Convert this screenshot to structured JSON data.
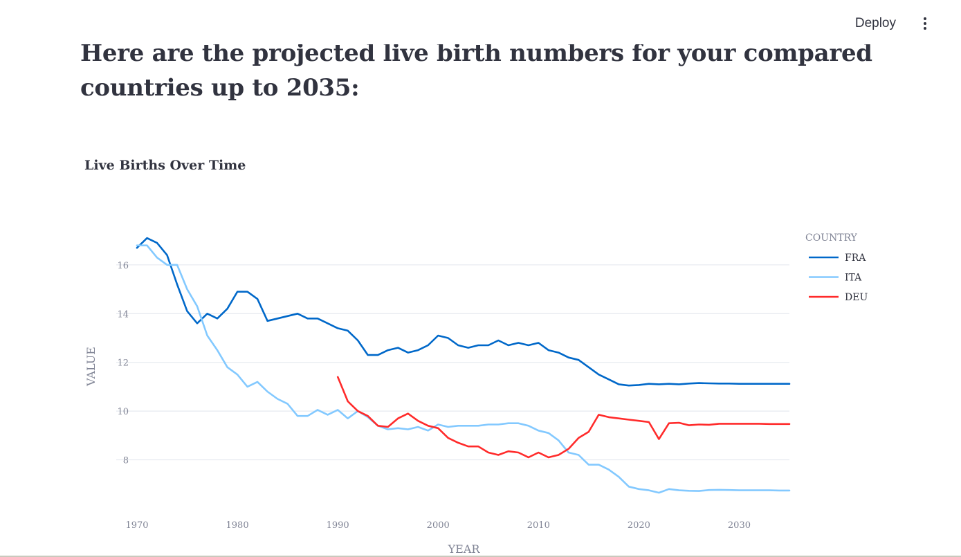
{
  "header": {
    "deploy_label": "Deploy",
    "menu_icon": "kebab-menu-icon"
  },
  "page": {
    "heading": "Here are the projected live birth numbers for your compared countries up to 2035:"
  },
  "chart_data": {
    "type": "line",
    "title": "Live Births Over Time",
    "xlabel": "YEAR",
    "ylabel": "VALUE",
    "xlim": [
      1970,
      2035
    ],
    "ylim": [
      6,
      17.5
    ],
    "x_ticks": [
      1970,
      1980,
      1990,
      2000,
      2010,
      2020,
      2030
    ],
    "y_ticks": [
      8,
      10,
      12,
      14,
      16
    ],
    "grid": true,
    "legend": {
      "title": "COUNTRY",
      "position": "right"
    },
    "series": [
      {
        "name": "FRA",
        "color": "#0068c9",
        "x": [
          1970,
          1971,
          1972,
          1973,
          1974,
          1975,
          1976,
          1977,
          1978,
          1979,
          1980,
          1981,
          1982,
          1983,
          1984,
          1985,
          1986,
          1987,
          1988,
          1989,
          1990,
          1991,
          1992,
          1993,
          1994,
          1995,
          1996,
          1997,
          1998,
          1999,
          2000,
          2001,
          2002,
          2003,
          2004,
          2005,
          2006,
          2007,
          2008,
          2009,
          2010,
          2011,
          2012,
          2013,
          2014,
          2015,
          2016,
          2017,
          2018,
          2019,
          2020,
          2021,
          2022,
          2023,
          2024,
          2025,
          2026,
          2027,
          2028,
          2029,
          2030,
          2031,
          2032,
          2033,
          2034,
          2035
        ],
        "values": [
          16.7,
          17.1,
          16.9,
          16.4,
          15.2,
          14.1,
          13.6,
          14.0,
          13.8,
          14.2,
          14.9,
          14.9,
          14.6,
          13.7,
          13.8,
          13.9,
          14.0,
          13.8,
          13.8,
          13.6,
          13.4,
          13.3,
          12.9,
          12.3,
          12.3,
          12.5,
          12.6,
          12.4,
          12.5,
          12.7,
          13.1,
          13.0,
          12.7,
          12.6,
          12.7,
          12.7,
          12.9,
          12.7,
          12.8,
          12.7,
          12.8,
          12.5,
          12.4,
          12.2,
          12.1,
          11.8,
          11.5,
          11.3,
          11.1,
          11.05,
          11.07,
          11.12,
          11.1,
          11.12,
          11.1,
          11.13,
          11.15,
          11.14,
          11.13,
          11.13,
          11.12,
          11.12,
          11.12,
          11.12,
          11.12,
          11.12
        ]
      },
      {
        "name": "ITA",
        "color": "#83c9ff",
        "x": [
          1970,
          1971,
          1972,
          1973,
          1974,
          1975,
          1976,
          1977,
          1978,
          1979,
          1980,
          1981,
          1982,
          1983,
          1984,
          1985,
          1986,
          1987,
          1988,
          1989,
          1990,
          1991,
          1992,
          1993,
          1994,
          1995,
          1996,
          1997,
          1998,
          1999,
          2000,
          2001,
          2002,
          2003,
          2004,
          2005,
          2006,
          2007,
          2008,
          2009,
          2010,
          2011,
          2012,
          2013,
          2014,
          2015,
          2016,
          2017,
          2018,
          2019,
          2020,
          2021,
          2022,
          2023,
          2024,
          2025,
          2026,
          2027,
          2028,
          2029,
          2030,
          2031,
          2032,
          2033,
          2034,
          2035
        ],
        "values": [
          16.8,
          16.8,
          16.3,
          16.0,
          16.0,
          15.0,
          14.3,
          13.1,
          12.5,
          11.8,
          11.5,
          11.0,
          11.2,
          10.8,
          10.5,
          10.3,
          9.8,
          9.8,
          10.05,
          9.85,
          10.05,
          9.7,
          10.0,
          9.75,
          9.4,
          9.25,
          9.3,
          9.25,
          9.35,
          9.2,
          9.45,
          9.35,
          9.4,
          9.4,
          9.4,
          9.45,
          9.45,
          9.5,
          9.5,
          9.4,
          9.2,
          9.1,
          8.8,
          8.3,
          8.2,
          7.8,
          7.8,
          7.6,
          7.3,
          6.9,
          6.8,
          6.75,
          6.65,
          6.8,
          6.75,
          6.73,
          6.72,
          6.76,
          6.77,
          6.76,
          6.75,
          6.75,
          6.75,
          6.75,
          6.74,
          6.74
        ]
      },
      {
        "name": "DEU",
        "color": "#ff2b2b",
        "x": [
          1990,
          1991,
          1992,
          1993,
          1994,
          1995,
          1996,
          1997,
          1998,
          1999,
          2000,
          2001,
          2002,
          2003,
          2004,
          2005,
          2006,
          2007,
          2008,
          2009,
          2010,
          2011,
          2012,
          2013,
          2014,
          2015,
          2016,
          2017,
          2018,
          2019,
          2020,
          2021,
          2022,
          2023,
          2024,
          2025,
          2026,
          2027,
          2028,
          2029,
          2030,
          2031,
          2032,
          2033,
          2034,
          2035
        ],
        "values": [
          11.4,
          10.4,
          10.0,
          9.8,
          9.4,
          9.35,
          9.7,
          9.9,
          9.6,
          9.4,
          9.3,
          8.9,
          8.7,
          8.55,
          8.55,
          8.3,
          8.2,
          8.35,
          8.3,
          8.1,
          8.3,
          8.1,
          8.2,
          8.45,
          8.9,
          9.15,
          9.85,
          9.75,
          9.7,
          9.65,
          9.6,
          9.55,
          8.85,
          9.5,
          9.52,
          9.42,
          9.45,
          9.44,
          9.48,
          9.48,
          9.48,
          9.48,
          9.48,
          9.47,
          9.47,
          9.47
        ]
      }
    ]
  }
}
